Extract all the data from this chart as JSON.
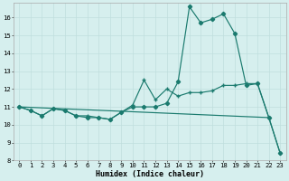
{
  "title": "",
  "xlabel": "Humidex (Indice chaleur)",
  "bg_color": "#d6efee",
  "line_color": "#1a7a6e",
  "grid_color": "#c0dedd",
  "xlim": [
    -0.5,
    23.5
  ],
  "ylim": [
    8,
    16.8
  ],
  "yticks": [
    8,
    9,
    10,
    11,
    12,
    13,
    14,
    15,
    16
  ],
  "xticks": [
    0,
    1,
    2,
    3,
    4,
    5,
    6,
    7,
    8,
    9,
    10,
    11,
    12,
    13,
    14,
    15,
    16,
    17,
    18,
    19,
    20,
    21,
    22,
    23
  ],
  "line1_x": [
    0,
    1,
    2,
    3,
    4,
    5,
    6,
    7,
    8,
    9,
    10,
    11,
    12,
    13,
    14,
    15,
    16,
    17,
    18,
    19,
    20,
    21,
    22,
    23
  ],
  "line1_y": [
    11.0,
    10.8,
    10.5,
    10.9,
    10.8,
    10.5,
    10.5,
    10.4,
    10.3,
    10.7,
    11.1,
    12.5,
    11.4,
    12.0,
    11.6,
    11.8,
    11.8,
    11.9,
    12.2,
    12.2,
    12.3,
    12.3,
    10.4,
    8.4
  ],
  "line2_x": [
    0,
    1,
    2,
    3,
    4,
    5,
    6,
    7,
    8,
    9,
    10,
    11,
    12,
    13,
    14,
    15,
    16,
    17,
    18,
    19,
    20,
    21,
    22,
    23
  ],
  "line2_y": [
    11.0,
    10.8,
    10.5,
    10.9,
    10.8,
    10.5,
    10.4,
    10.4,
    10.3,
    10.7,
    11.0,
    11.0,
    11.0,
    11.2,
    12.4,
    16.6,
    15.7,
    15.9,
    16.2,
    15.1,
    12.2,
    12.3,
    10.4,
    8.4
  ],
  "line3_x": [
    0,
    22
  ],
  "line3_y": [
    11.0,
    10.4
  ]
}
